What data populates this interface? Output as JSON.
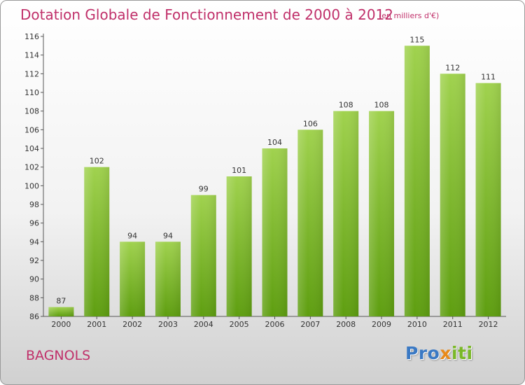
{
  "title": "Dotation Globale de Fonctionnement de 2000 à 2012",
  "subtitle": "(en milliers d'€)",
  "commune": "BAGNOLS",
  "logo": {
    "letters": [
      "P",
      "r",
      "o",
      "x",
      "i",
      "t",
      "i"
    ],
    "colors": [
      "#3a79c4",
      "#3a79c4",
      "#3a79c4",
      "#e88a1a",
      "#7ab828",
      "#7ab828",
      "#7ab828"
    ]
  },
  "colors": {
    "title": "#c0306a",
    "bar_light": "#a0d24e",
    "bar_dark": "#5e9e10"
  },
  "chart_data": {
    "type": "bar",
    "title": "Dotation Globale de Fonctionnement de 2000 à 2012",
    "subtitle": "(en milliers d'€)",
    "categories": [
      "2000",
      "2001",
      "2002",
      "2003",
      "2004",
      "2005",
      "2006",
      "2007",
      "2008",
      "2009",
      "2010",
      "2011",
      "2012"
    ],
    "values": [
      87,
      102,
      94,
      94,
      99,
      101,
      104,
      106,
      108,
      108,
      115,
      112,
      111
    ],
    "ylim": [
      86,
      116
    ],
    "yticks": [
      86,
      88,
      90,
      92,
      94,
      96,
      98,
      100,
      102,
      104,
      106,
      108,
      110,
      112,
      114,
      116
    ],
    "grid": false,
    "legend": "none"
  }
}
